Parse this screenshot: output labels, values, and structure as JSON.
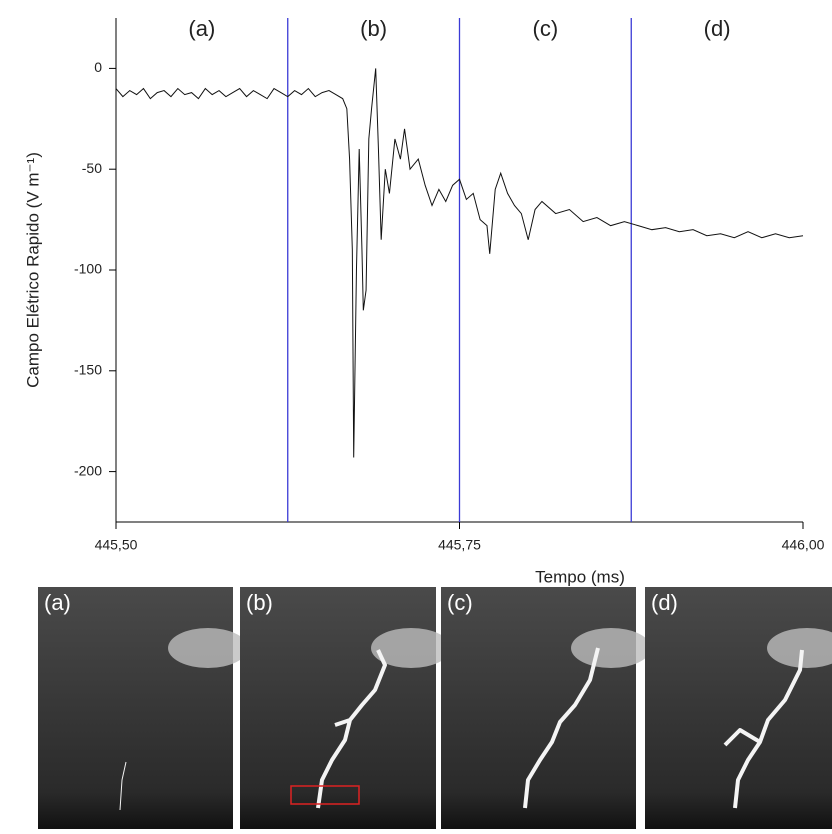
{
  "chart_data": {
    "type": "line",
    "y_label": "Campo Elétrico Rapido (V m⁻¹)",
    "x_label": "Tempo (ms)",
    "xlim": [
      445.5,
      446.0
    ],
    "xticks": [
      {
        "value": 445.5,
        "label": "445,50"
      },
      {
        "value": 445.75,
        "label": "445,75"
      },
      {
        "value": 446.0,
        "label": "446,00"
      }
    ],
    "ylim": [
      -225,
      25
    ],
    "yticks": [
      -200,
      -150,
      -100,
      -50,
      0
    ],
    "regions": [
      "(a)",
      "(b)",
      "(c)",
      "(d)"
    ],
    "region_bounds": [
      445.625,
      445.75,
      445.875
    ],
    "region_color": "#3b3bd6",
    "series": [
      {
        "color": "#111111",
        "x": [
          445.5,
          445.505,
          445.51,
          445.515,
          445.52,
          445.525,
          445.53,
          445.535,
          445.54,
          445.545,
          445.55,
          445.555,
          445.56,
          445.565,
          445.57,
          445.575,
          445.58,
          445.585,
          445.59,
          445.595,
          445.6,
          445.605,
          445.61,
          445.615,
          445.62,
          445.625,
          445.63,
          445.635,
          445.64,
          445.645,
          445.65,
          445.655,
          445.66,
          445.665,
          445.668,
          445.67,
          445.672,
          445.673,
          445.675,
          445.677,
          445.679,
          445.68,
          445.682,
          445.684,
          445.686,
          445.689,
          445.691,
          445.693,
          445.696,
          445.699,
          445.703,
          445.707,
          445.71,
          445.714,
          445.72,
          445.725,
          445.73,
          445.735,
          445.74,
          445.745,
          445.75,
          445.755,
          445.76,
          445.765,
          445.77,
          445.772,
          445.776,
          445.78,
          445.785,
          445.79,
          445.795,
          445.8,
          445.805,
          445.81,
          445.82,
          445.83,
          445.84,
          445.85,
          445.86,
          445.87,
          445.88,
          445.89,
          445.9,
          445.91,
          445.92,
          445.93,
          445.94,
          445.95,
          445.96,
          445.97,
          445.98,
          445.99,
          446.0
        ],
        "values": [
          -10,
          -14,
          -11,
          -13,
          -10,
          -15,
          -12,
          -11,
          -14,
          -10,
          -13,
          -12,
          -15,
          -10,
          -13,
          -11,
          -14,
          -12,
          -10,
          -14,
          -11,
          -13,
          -15,
          -10,
          -12,
          -14,
          -11,
          -13,
          -10,
          -14,
          -12,
          -11,
          -13,
          -15,
          -20,
          -45,
          -90,
          -193,
          -100,
          -40,
          -90,
          -120,
          -110,
          -35,
          -20,
          0,
          -40,
          -85,
          -50,
          -62,
          -35,
          -45,
          -30,
          -50,
          -45,
          -58,
          -68,
          -60,
          -66,
          -58,
          -55,
          -65,
          -62,
          -75,
          -78,
          -92,
          -60,
          -52,
          -62,
          -68,
          -72,
          -85,
          -70,
          -66,
          -72,
          -70,
          -76,
          -74,
          -78,
          -76,
          -78,
          -80,
          -79,
          -81,
          -80,
          -83,
          -82,
          -84,
          -81,
          -84,
          -82,
          -84,
          -83
        ]
      }
    ]
  },
  "photos": {
    "labels": [
      "(a)",
      "(b)",
      "(c)",
      "(d)"
    ]
  }
}
